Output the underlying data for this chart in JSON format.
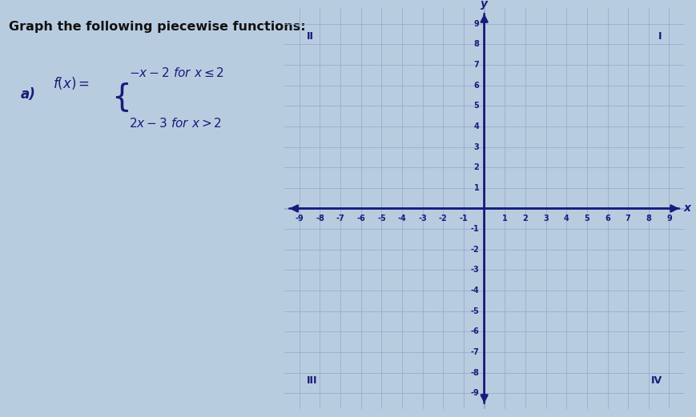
{
  "title": "Graph the following piecewise functions:",
  "label_a": "a)",
  "func_line1": "-x - 2 for x ≤ 2",
  "func_line2": "2x - 3 for x > 2",
  "xmin": -9,
  "xmax": 9,
  "ymin": -9,
  "ymax": 9,
  "grid_color": "#8fa8cc",
  "axis_color": "#1a1a7a",
  "quadrant_labels": [
    "I",
    "II",
    "III",
    "IV"
  ],
  "text_color_title": "#111111",
  "text_color_func": "#1a1a7a",
  "graph_bg": "#d8e4f0",
  "outer_bg": "#b8cce0"
}
